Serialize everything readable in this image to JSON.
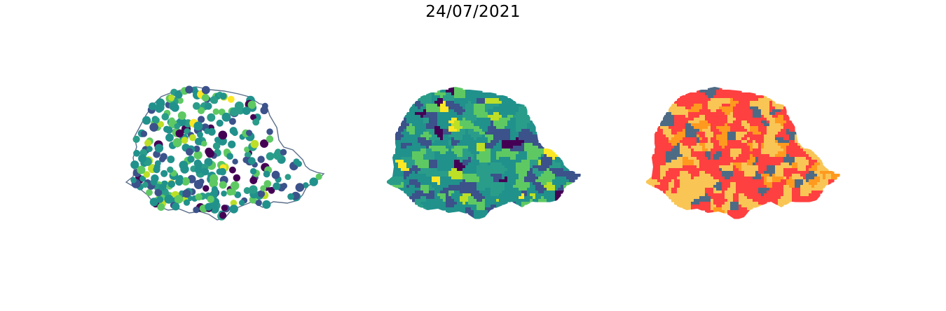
{
  "figure": {
    "title": "24/07/2021"
  },
  "panels": [
    {
      "id": "points",
      "kind": "scatter-on-outline"
    },
    {
      "id": "choropleth",
      "kind": "continuous-choropleth"
    },
    {
      "id": "categories",
      "kind": "categorical-choropleth"
    }
  ],
  "colors": {
    "outline": "#5b6f8a",
    "viridis": [
      "#440154",
      "#3b528b",
      "#21918c",
      "#2a9d8a",
      "#5ec962",
      "#bddf26",
      "#fde725"
    ],
    "categories": [
      "#4e6b85",
      "#ff4040",
      "#ff9a1f",
      "#f9c555"
    ]
  }
}
